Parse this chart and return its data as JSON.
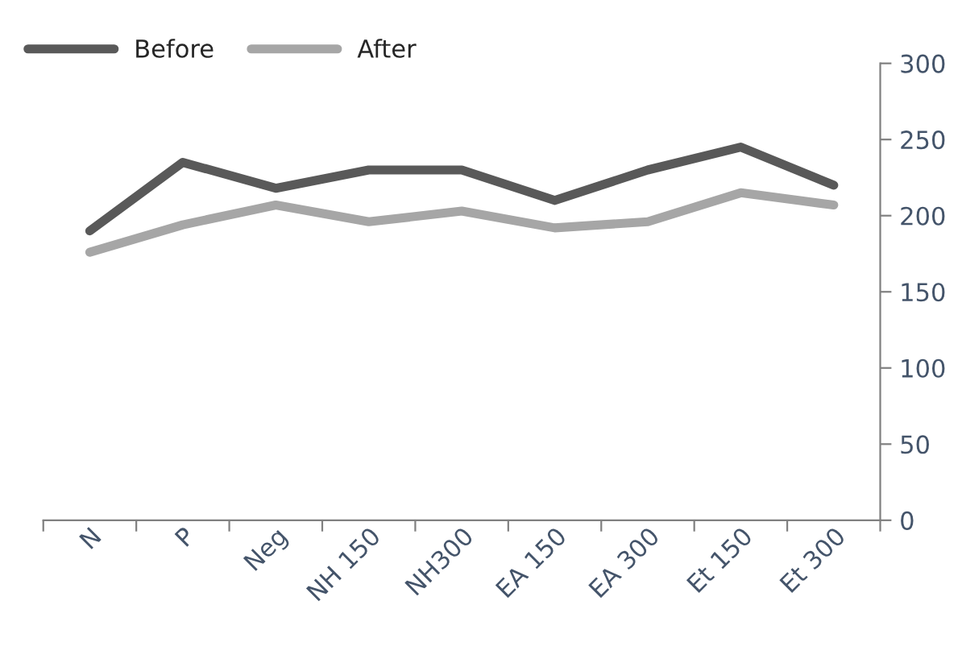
{
  "chart_data": {
    "type": "line",
    "categories": [
      "N",
      "P",
      "Neg",
      "NH 150",
      "NH300",
      "EA 150",
      "EA 300",
      "Et 150",
      "Et 300"
    ],
    "series": [
      {
        "name": "Before",
        "color": "#595959",
        "values": [
          190,
          235,
          218,
          230,
          230,
          210,
          230,
          245,
          220
        ]
      },
      {
        "name": "After",
        "color": "#a6a6a6",
        "values": [
          176,
          194,
          207,
          196,
          203,
          192,
          196,
          215,
          207
        ]
      }
    ],
    "ylim": [
      0,
      300
    ],
    "yticks": [
      0,
      50,
      100,
      150,
      200,
      250,
      300
    ],
    "legend": "top left",
    "grid": false,
    "marker": "none",
    "line_style": "solid"
  }
}
